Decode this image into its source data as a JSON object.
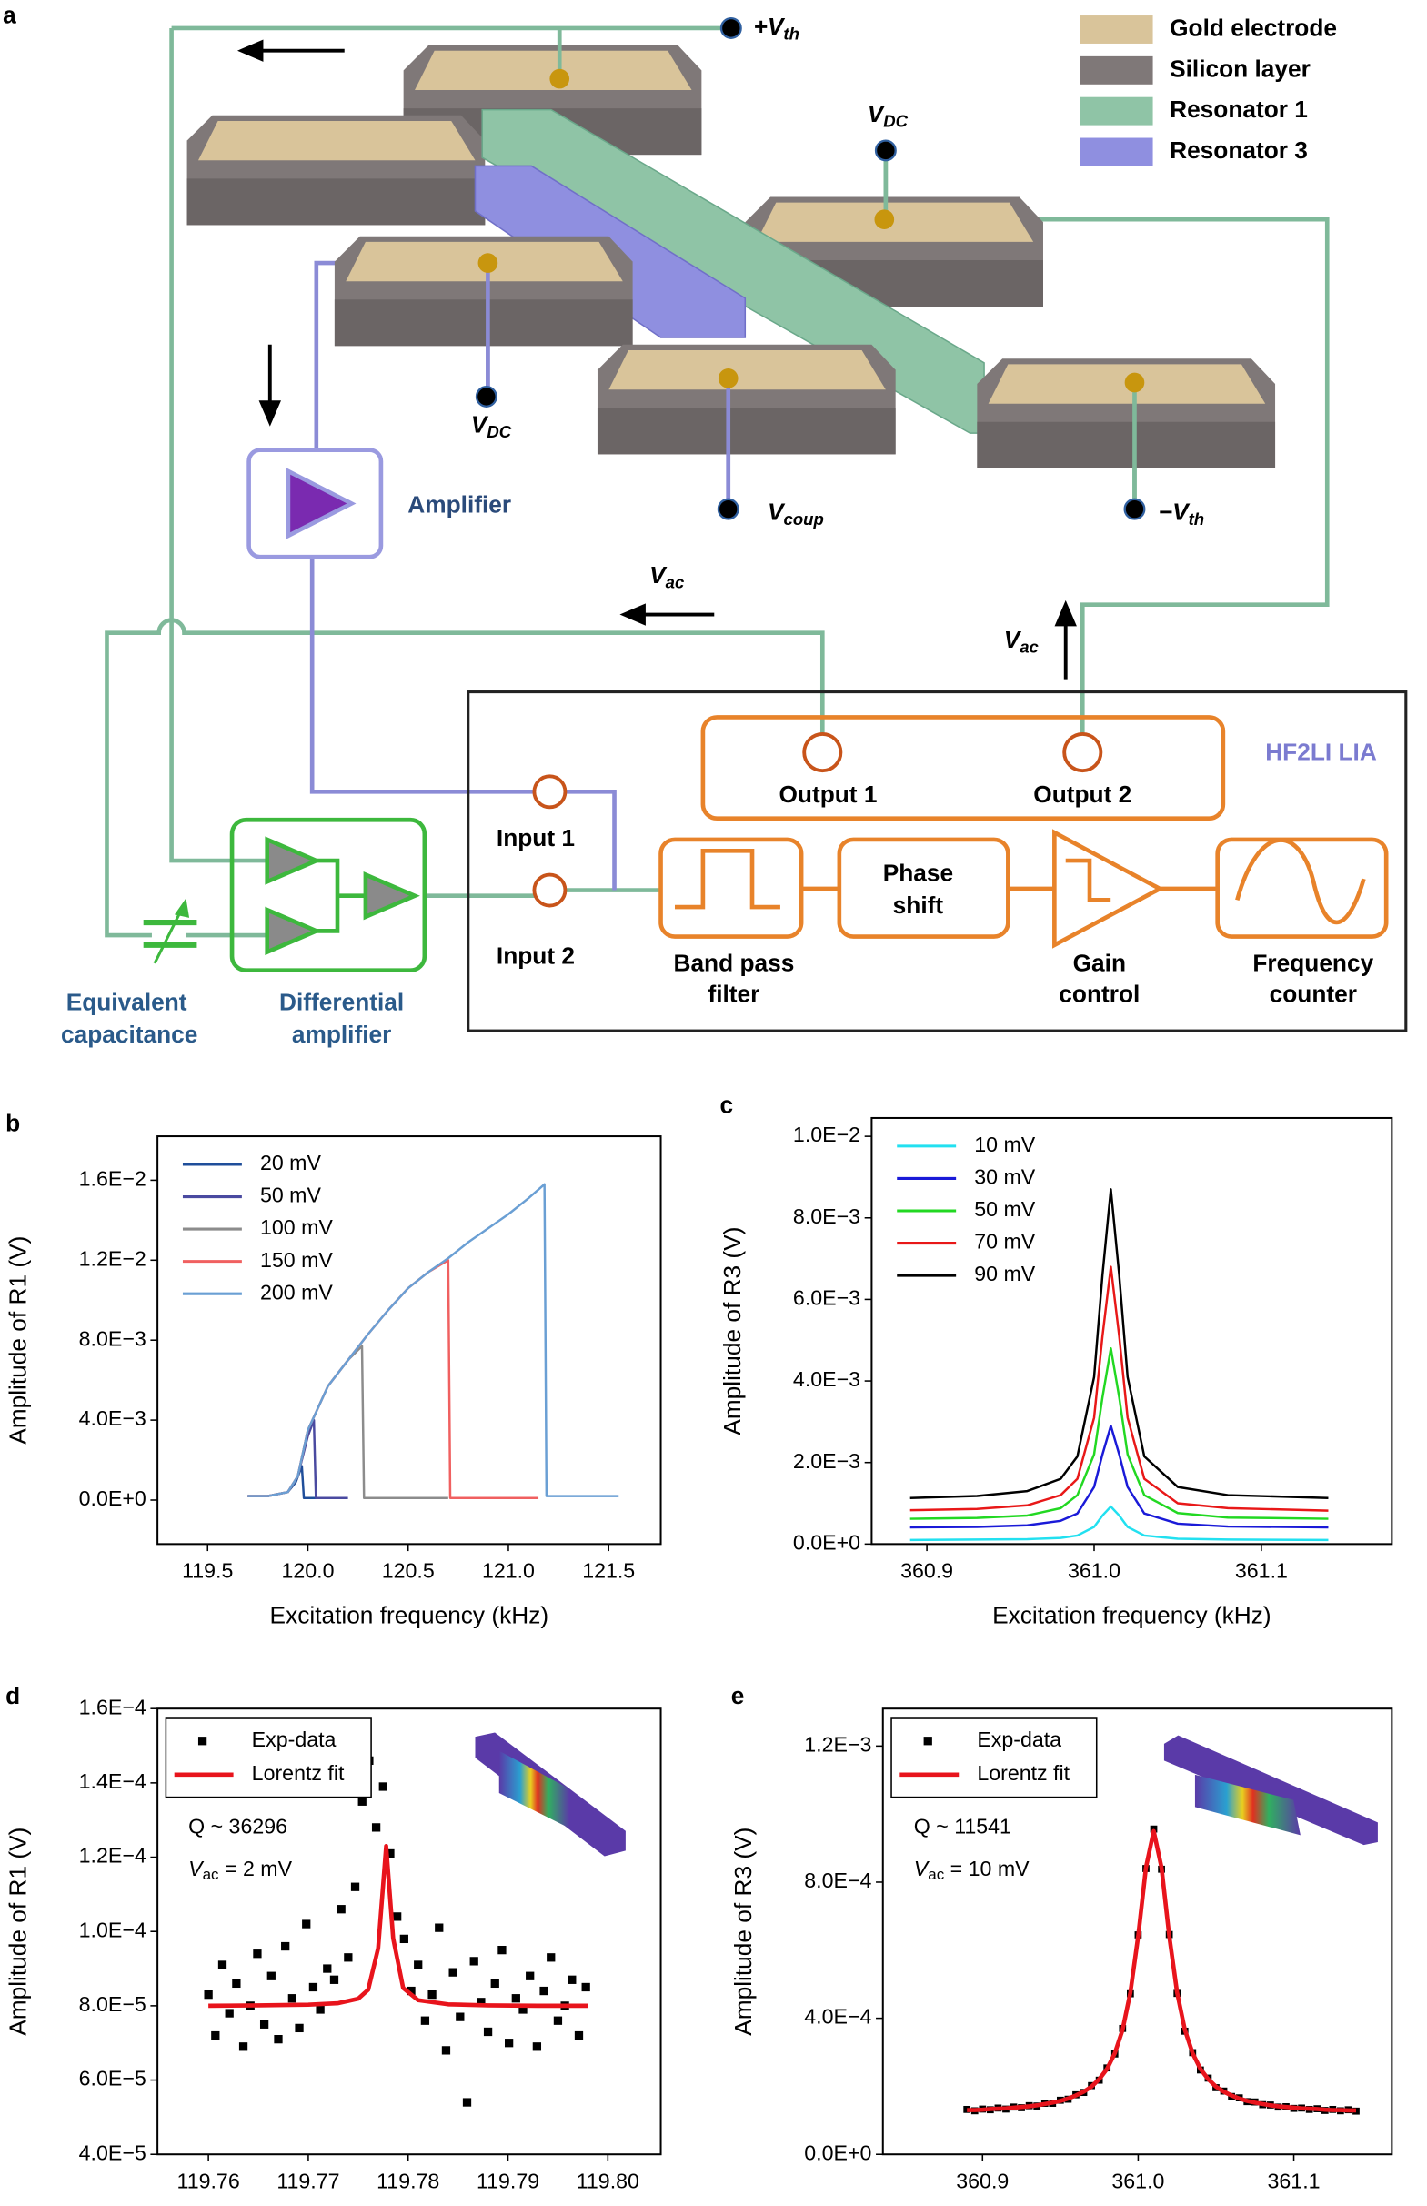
{
  "panel_a": {
    "label": "a",
    "legend": [
      "Gold electrode",
      "Silicon layer",
      "Resonator 1",
      "Resonator 3"
    ],
    "labels": {
      "vth_plus": [
        "+V",
        "th"
      ],
      "vdc_top": [
        "V",
        "DC"
      ],
      "vdc_left": [
        "V",
        "DC"
      ],
      "vcoup": [
        "V",
        "coup"
      ],
      "vth_minus": [
        "−V",
        "th"
      ],
      "vac_left": [
        "V",
        "ac"
      ],
      "vac_right": [
        "V",
        "ac"
      ],
      "amplifier": "Amplifier",
      "lia": "HF2LI LIA",
      "output1": "Output 1",
      "output2": "Output 2",
      "input1": "Input 1",
      "input2": "Input 2",
      "bandpass": [
        "Band pass",
        "filter"
      ],
      "phase": [
        "Phase",
        "shift"
      ],
      "gain": [
        "Gain",
        "control"
      ],
      "freq": [
        "Frequency",
        "counter"
      ],
      "capacitance": [
        "Equivalent",
        "capacitance"
      ],
      "diffamp": [
        "Differential",
        "amplifier"
      ]
    }
  },
  "chart_data": [
    {
      "type": "line",
      "panel": "b",
      "x_label": "Excitation frequency (kHz)",
      "y_label": "Amplitude of R1 (V)",
      "xlim": [
        119.25,
        121.76
      ],
      "ylim": [
        -0.0022,
        0.0182
      ],
      "xticks": [
        119.5,
        {
          "value": 120,
          "label": "120.0"
        },
        120.5,
        {
          "value": 121,
          "label": "121.0"
        },
        121.5
      ],
      "yticks": [
        {
          "value": 0,
          "label": "0.0E+0"
        },
        {
          "value": 0.004,
          "label": "4.0E−3"
        },
        {
          "value": 0.008,
          "label": "8.0E−3"
        },
        {
          "value": 0.012,
          "label": "1.2E−2"
        },
        {
          "value": 0.016,
          "label": "1.6E−2"
        }
      ],
      "legend": "upper left",
      "legend_frame": false,
      "series": [
        {
          "name": "20 mV",
          "color": "#1f4e9a",
          "x": [
            119.7,
            119.8,
            119.9,
            119.94,
            119.97,
            119.98,
            120.05,
            120.15
          ],
          "values": [
            0.0002,
            0.0002,
            0.0004,
            0.0009,
            0.0017,
            0.0001,
            0.0001,
            0.0001
          ]
        },
        {
          "name": "50 mV",
          "color": "#4a4aa0",
          "x": [
            119.7,
            119.8,
            119.9,
            119.95,
            120.0,
            120.03,
            120.04,
            120.1,
            120.2
          ],
          "values": [
            0.0002,
            0.0002,
            0.0004,
            0.0012,
            0.0032,
            0.004,
            0.0001,
            0.0001,
            0.0001
          ]
        },
        {
          "name": "100 mV",
          "color": "#8c8c8c",
          "x": [
            119.7,
            119.8,
            119.9,
            119.95,
            120.0,
            120.1,
            120.2,
            120.27,
            120.28,
            120.5,
            120.7
          ],
          "values": [
            0.0002,
            0.0002,
            0.0004,
            0.0012,
            0.0035,
            0.0057,
            0.007,
            0.0077,
            0.0001,
            0.0001,
            0.0001
          ]
        },
        {
          "name": "150 mV",
          "color": "#f06060",
          "x": [
            119.7,
            119.8,
            119.9,
            119.95,
            120.0,
            120.1,
            120.2,
            120.3,
            120.4,
            120.5,
            120.6,
            120.7,
            120.71,
            121.0,
            121.15
          ],
          "values": [
            0.0002,
            0.0002,
            0.0004,
            0.0012,
            0.0035,
            0.0057,
            0.007,
            0.0083,
            0.0095,
            0.0106,
            0.0114,
            0.012,
            0.0001,
            0.0001,
            0.0001
          ]
        },
        {
          "name": "200 mV",
          "color": "#6a9fd4",
          "x": [
            119.7,
            119.8,
            119.9,
            119.95,
            120.0,
            120.1,
            120.2,
            120.3,
            120.4,
            120.5,
            120.6,
            120.7,
            120.8,
            120.9,
            121.0,
            121.1,
            121.18,
            121.19,
            121.3,
            121.55
          ],
          "values": [
            0.0002,
            0.0002,
            0.0004,
            0.0012,
            0.0035,
            0.0057,
            0.007,
            0.0083,
            0.0095,
            0.0106,
            0.0114,
            0.0121,
            0.0129,
            0.0136,
            0.0143,
            0.0151,
            0.0158,
            0.0002,
            0.0002,
            0.0002
          ]
        }
      ]
    },
    {
      "type": "line",
      "panel": "c",
      "x_label": "Excitation frequency (kHz)",
      "y_label": "Amplitude of R3 (V)",
      "xlim": [
        360.867,
        361.178
      ],
      "ylim": [
        0,
        0.01045
      ],
      "xticks": [
        360.9,
        {
          "value": 361,
          "label": "361.0"
        },
        361.1
      ],
      "yticks": [
        {
          "value": 0,
          "label": "0.0E+0"
        },
        {
          "value": 0.002,
          "label": "2.0E−3"
        },
        {
          "value": 0.004,
          "label": "4.0E−3"
        },
        {
          "value": 0.006,
          "label": "6.0E−3"
        },
        {
          "value": 0.008,
          "label": "8.0E−3"
        },
        {
          "value": 0.01,
          "label": "1.0E−2"
        }
      ],
      "legend": "upper left",
      "legend_frame": false,
      "x": [
        360.89,
        360.93,
        360.96,
        360.98,
        360.99,
        361.0,
        361.005,
        361.01,
        361.015,
        361.02,
        361.03,
        361.05,
        361.08,
        361.14
      ],
      "series": [
        {
          "name": "10 mV",
          "color": "#22e0f0",
          "values": [
            0.0001,
            0.00011,
            0.00012,
            0.00015,
            0.00021,
            0.00042,
            0.0007,
            0.00092,
            0.0007,
            0.00042,
            0.00021,
            0.00013,
            0.00011,
            0.0001
          ]
        },
        {
          "name": "30 mV",
          "color": "#1a1ad8",
          "values": [
            0.00041,
            0.00042,
            0.00046,
            0.00057,
            0.00075,
            0.0014,
            0.0022,
            0.0029,
            0.0022,
            0.0014,
            0.00075,
            0.0005,
            0.00043,
            0.00041
          ]
        },
        {
          "name": "50 mV",
          "color": "#22d822",
          "values": [
            0.00062,
            0.00064,
            0.0007,
            0.00088,
            0.0012,
            0.0022,
            0.0036,
            0.0048,
            0.0036,
            0.0022,
            0.0012,
            0.00076,
            0.00065,
            0.00062
          ]
        },
        {
          "name": "70 mV",
          "color": "#e81818",
          "values": [
            0.00083,
            0.00086,
            0.00095,
            0.0012,
            0.0016,
            0.0031,
            0.0051,
            0.0068,
            0.0051,
            0.0031,
            0.0016,
            0.001,
            0.00088,
            0.00082
          ]
        },
        {
          "name": "90 mV",
          "color": "#000000",
          "values": [
            0.00113,
            0.00118,
            0.0013,
            0.0016,
            0.00215,
            0.0041,
            0.0066,
            0.0087,
            0.0066,
            0.0041,
            0.00215,
            0.0014,
            0.0012,
            0.00113
          ]
        }
      ]
    },
    {
      "type": "scatter",
      "panel": "d",
      "x_label": "Excitation frequency (kHz)",
      "y_label": "Amplitude of R1 (V)",
      "xlim": [
        119.7549,
        119.8053
      ],
      "ylim": [
        4e-05,
        0.00016
      ],
      "xticks": [
        119.76,
        119.77,
        119.78,
        119.79,
        {
          "value": 119.8,
          "label": "119.80"
        }
      ],
      "yticks": [
        {
          "value": 4e-05,
          "label": "4.0E−5"
        },
        {
          "value": 6e-05,
          "label": "6.0E−5"
        },
        {
          "value": 8e-05,
          "label": "8.0E−5"
        },
        {
          "value": 0.0001,
          "label": "1.0E−4"
        },
        {
          "value": 0.00012,
          "label": "1.2E−4"
        },
        {
          "value": 0.00014,
          "label": "1.4E−4"
        },
        {
          "value": 0.00016,
          "label": "1.6E−4"
        }
      ],
      "legend": "upper left",
      "legend_frame": true,
      "annotations": [
        {
          "text": "Q ~ 36296"
        },
        {
          "text": "V",
          "sub": "ac",
          "after": " = 2 mV"
        }
      ],
      "series": [
        {
          "name": "Exp-data",
          "type": "scatter",
          "color": "#000000",
          "x": [
            119.76,
            119.7607,
            119.7614,
            119.7621,
            119.7628,
            119.7635,
            119.7642,
            119.7649,
            119.7656,
            119.7663,
            119.767,
            119.7677,
            119.7684,
            119.7691,
            119.7698,
            119.7705,
            119.7712,
            119.7719,
            119.7726,
            119.7733,
            119.774,
            119.7747,
            119.7754,
            119.7761,
            119.7768,
            119.7775,
            119.7782,
            119.7789,
            119.7796,
            119.7803,
            119.781,
            119.7817,
            119.7824,
            119.7831,
            119.7838,
            119.7845,
            119.7852,
            119.7859,
            119.7866,
            119.7873,
            119.788,
            119.7887,
            119.7894,
            119.7901,
            119.7908,
            119.7915,
            119.7922,
            119.7929,
            119.7936,
            119.7943,
            119.795,
            119.7957,
            119.7964,
            119.7971,
            119.7978
          ],
          "values": [
            8.3e-05,
            7.2e-05,
            9.1e-05,
            7.8e-05,
            8.6e-05,
            6.9e-05,
            8e-05,
            9.4e-05,
            7.5e-05,
            8.8e-05,
            7.1e-05,
            9.6e-05,
            8.2e-05,
            7.4e-05,
            0.000102,
            8.5e-05,
            7.9e-05,
            9e-05,
            8.7e-05,
            0.000106,
            9.3e-05,
            0.000112,
            0.000135,
            0.000146,
            0.000128,
            0.000139,
            0.000121,
            0.000104,
            9.8e-05,
            8.4e-05,
            9.1e-05,
            7.6e-05,
            8.3e-05,
            0.000101,
            6.8e-05,
            8.9e-05,
            7.7e-05,
            5.4e-05,
            9.2e-05,
            8.1e-05,
            7.3e-05,
            8.6e-05,
            9.5e-05,
            7e-05,
            8.2e-05,
            7.9e-05,
            8.8e-05,
            6.9e-05,
            8.4e-05,
            9.3e-05,
            7.6e-05,
            8e-05,
            8.7e-05,
            7.2e-05,
            8.5e-05
          ]
        },
        {
          "name": "Lorentz fit",
          "type": "line",
          "color": "#e8141c",
          "x": [
            119.76,
            119.765,
            119.77,
            119.773,
            119.775,
            119.776,
            119.777,
            119.7778,
            119.7785,
            119.7795,
            119.781,
            119.784,
            119.788,
            119.793,
            119.798
          ],
          "values": [
            8e-05,
            8.01e-05,
            8.03e-05,
            8.07e-05,
            8.19e-05,
            8.43e-05,
            9.55e-05,
            0.000123,
            9.82e-05,
            8.48e-05,
            8.15e-05,
            8.04e-05,
            8.01e-05,
            8e-05,
            8e-05
          ]
        }
      ]
    },
    {
      "type": "scatter",
      "panel": "e",
      "x_label": "Excitation frequency (kHz)",
      "y_label": "Amplitude of R3 (V)",
      "xlim": [
        360.836,
        361.163
      ],
      "ylim": [
        0,
        0.00131
      ],
      "xticks": [
        360.9,
        {
          "value": 361,
          "label": "361.0"
        },
        361.1
      ],
      "yticks": [
        {
          "value": 0,
          "label": "0.0E+0"
        },
        {
          "value": 0.0004,
          "label": "4.0E−4"
        },
        {
          "value": 0.0008,
          "label": "8.0E−4"
        },
        {
          "value": 0.0012,
          "label": "1.2E−3"
        }
      ],
      "legend": "upper left",
      "legend_frame": true,
      "annotations": [
        {
          "text": "Q ~ 11541"
        },
        {
          "text": "V",
          "sub": "ac",
          "after": " = 10 mV"
        }
      ],
      "x": [
        360.89,
        360.895,
        360.9,
        360.905,
        360.91,
        360.915,
        360.92,
        360.925,
        360.93,
        360.935,
        360.94,
        360.945,
        360.95,
        360.955,
        360.96,
        360.965,
        360.97,
        360.975,
        360.98,
        360.985,
        360.99,
        360.995,
        361.0,
        361.005,
        361.01,
        361.015,
        361.02,
        361.025,
        361.03,
        361.035,
        361.04,
        361.045,
        361.05,
        361.055,
        361.06,
        361.065,
        361.07,
        361.075,
        361.08,
        361.085,
        361.09,
        361.095,
        361.1,
        361.105,
        361.11,
        361.115,
        361.12,
        361.125,
        361.13,
        361.135,
        361.14
      ],
      "series": [
        {
          "name": "Exp-data",
          "type": "scatter",
          "color": "#000000",
          "values": [
            0.000132,
            0.000128,
            0.000133,
            0.000131,
            0.000136,
            0.000133,
            0.000139,
            0.000137,
            0.000143,
            0.000142,
            0.00015,
            0.00015,
            0.000159,
            0.000162,
            0.000175,
            0.000182,
            0.000202,
            0.000218,
            0.000254,
            0.000295,
            0.00037,
            0.000472,
            0.000645,
            0.00084,
            0.000956,
            0.000838,
            0.000646,
            0.000473,
            0.000362,
            0.000299,
            0.000248,
            0.000224,
            0.000196,
            0.000186,
            0.00017,
            0.000166,
            0.000155,
            0.000154,
            0.000146,
            0.000145,
            0.000139,
            0.00014,
            0.000135,
            0.000136,
            0.000132,
            0.000134,
            0.000129,
            0.000132,
            0.000128,
            0.000131,
            0.000127
          ]
        },
        {
          "name": "Lorentz fit",
          "type": "line",
          "color": "#e8141c",
          "values": [
            0.00013,
            0.00013,
            0.000131,
            0.000133,
            0.000134,
            0.000135,
            0.000137,
            0.000139,
            0.000141,
            0.000144,
            0.000148,
            0.000152,
            0.000157,
            0.000164,
            0.000173,
            0.000184,
            0.000199,
            0.000221,
            0.000251,
            0.000297,
            0.000366,
            0.000476,
            0.000641,
            0.000843,
            0.00095,
            0.000843,
            0.000641,
            0.000476,
            0.000366,
            0.000297,
            0.000251,
            0.000221,
            0.000199,
            0.000184,
            0.000173,
            0.000164,
            0.000157,
            0.000152,
            0.000148,
            0.000144,
            0.000141,
            0.000139,
            0.000137,
            0.000135,
            0.000134,
            0.000133,
            0.000131,
            0.00013,
            0.00013,
            0.000129,
            0.000129
          ]
        }
      ]
    }
  ]
}
